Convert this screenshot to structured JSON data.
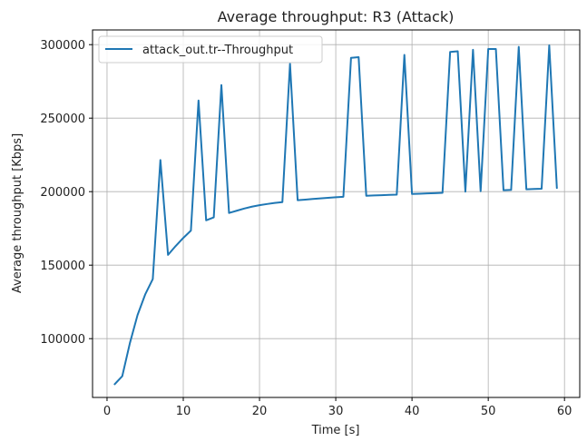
{
  "chart_data": {
    "type": "line",
    "title": "Average throughput: R3 (Attack)",
    "xlabel": "Time [s]",
    "ylabel": "Average throughput [Kbps]",
    "xlim": [
      -1.9,
      62
    ],
    "ylim": [
      60000,
      310000
    ],
    "xticks": [
      0,
      10,
      20,
      30,
      40,
      50,
      60
    ],
    "yticks": [
      100000,
      150000,
      200000,
      250000,
      300000
    ],
    "grid": true,
    "legend_position": "top-left",
    "series": [
      {
        "name": "attack_out.tr--Throughput",
        "color": "#1f77b4",
        "x": [
          1,
          2,
          3,
          4,
          5,
          6,
          7,
          8,
          9,
          10,
          11,
          12,
          13,
          14,
          15,
          16,
          17,
          18,
          19,
          20,
          21,
          22,
          23,
          24,
          25,
          26,
          27,
          28,
          29,
          30,
          31,
          32,
          33,
          34,
          35,
          36,
          37,
          38,
          39,
          40,
          41,
          42,
          43,
          44,
          45,
          46,
          47,
          48,
          49,
          50,
          51,
          52,
          53,
          54,
          55,
          56,
          57,
          58,
          59
        ],
        "y": [
          69000,
          74500,
          97000,
          116000,
          130000,
          140500,
          221500,
          157000,
          163000,
          168500,
          173500,
          262000,
          180500,
          182500,
          272500,
          185500,
          187000,
          188500,
          189800,
          190800,
          191600,
          192300,
          192900,
          287000,
          194200,
          194600,
          195000,
          195400,
          195800,
          196200,
          196500,
          291000,
          291500,
          197200,
          197400,
          197600,
          197800,
          198000,
          293000,
          198400,
          198600,
          198800,
          199000,
          199200,
          295000,
          295500,
          200000,
          296500,
          200300,
          297000,
          297000,
          201000,
          201200,
          298500,
          201600,
          201800,
          202000,
          299500,
          202500
        ]
      }
    ]
  }
}
